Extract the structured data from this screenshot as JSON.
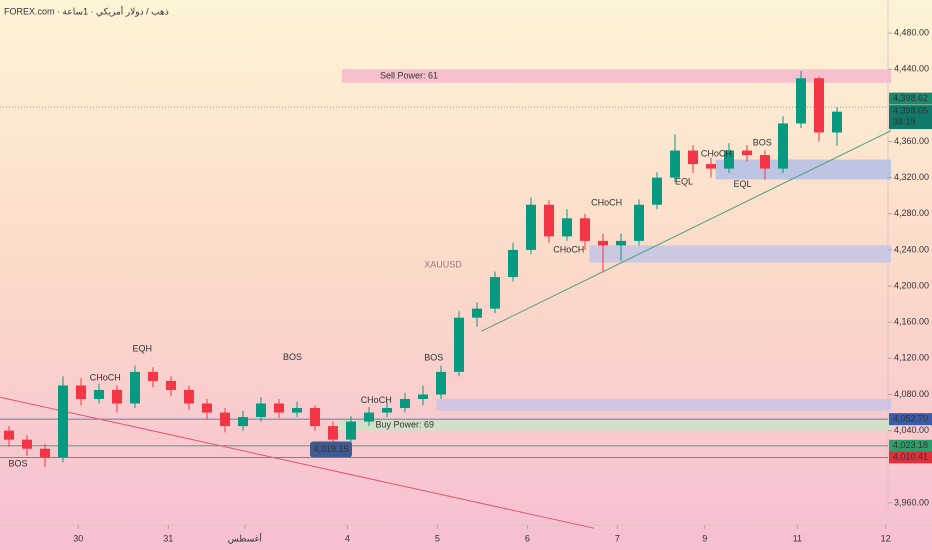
{
  "chart_data": {
    "type": "candlestick",
    "header": "FOREX.com · ذهب / دولار أمريكي · 1ساعة",
    "watermark": "XAUUSD",
    "up_color": "#089981",
    "down_color": "#f23645",
    "xlim": [
      0,
      99
    ],
    "ylim": [
      3930,
      4500
    ],
    "xticks": [
      {
        "value": 8.7,
        "label": "30"
      },
      {
        "value": 18.7,
        "label": "31"
      },
      {
        "value": 27.2,
        "label": "أغسطس"
      },
      {
        "value": 38.6,
        "label": "4"
      },
      {
        "value": 48.6,
        "label": "5"
      },
      {
        "value": 58.6,
        "label": "6"
      },
      {
        "value": 68.6,
        "label": "7"
      },
      {
        "value": 78.3,
        "label": "9"
      },
      {
        "value": 88.6,
        "label": "11"
      },
      {
        "value": 98.4,
        "label": "12"
      }
    ],
    "yticks": [
      {
        "value": 4480,
        "label": "4,480.00"
      },
      {
        "value": 4440,
        "label": "4,440.00"
      },
      {
        "value": 4360,
        "label": "4,360.00"
      },
      {
        "value": 4320,
        "label": "4,320.00"
      },
      {
        "value": 4280,
        "label": "4,280.00"
      },
      {
        "value": 4240,
        "label": "4,240.00"
      },
      {
        "value": 4200,
        "label": "4,200.00"
      },
      {
        "value": 4160,
        "label": "4,160.00"
      },
      {
        "value": 4120,
        "label": "4,120.00"
      },
      {
        "value": 4080,
        "label": "4,080.00"
      },
      {
        "value": 4040,
        "label": "4,040.00"
      },
      {
        "value": 3960,
        "label": "3,960.00"
      }
    ],
    "x": [
      1,
      3,
      5,
      7,
      9,
      11,
      13,
      15,
      17,
      19,
      21,
      23,
      25,
      27,
      29,
      31,
      33,
      35,
      37,
      39,
      41,
      43,
      45,
      47,
      49,
      51,
      53,
      55,
      57,
      59,
      61,
      63,
      65,
      67,
      69,
      71,
      73,
      75,
      77,
      79,
      81,
      83,
      85,
      87,
      89,
      91,
      93
    ],
    "open": [
      4040,
      4030,
      4020,
      4010,
      4090,
      4075,
      4085,
      4070,
      4105,
      4095,
      4085,
      4070,
      4060,
      4045,
      4055,
      4070,
      4060,
      4065,
      4045,
      4030,
      4050,
      4060,
      4065,
      4075,
      4080,
      4105,
      4165,
      4175,
      4210,
      4240,
      4290,
      4255,
      4275,
      4250,
      4245,
      4250,
      4290,
      4320,
      4350,
      4335,
      4330,
      4350,
      4345,
      4330,
      4380,
      4430,
      4370
    ],
    "high": [
      4045,
      4035,
      4025,
      4100,
      4098,
      4092,
      4090,
      4112,
      4110,
      4100,
      4090,
      4075,
      4065,
      4062,
      4077,
      4075,
      4072,
      4068,
      4050,
      4056,
      4066,
      4072,
      4082,
      4090,
      4112,
      4172,
      4182,
      4216,
      4248,
      4298,
      4295,
      4285,
      4280,
      4258,
      4258,
      4296,
      4326,
      4368,
      4356,
      4342,
      4358,
      4356,
      4350,
      4388,
      4438,
      4432,
      4398
    ],
    "low": [
      4022,
      4012,
      4000,
      4005,
      4068,
      4070,
      4060,
      4065,
      4088,
      4078,
      4063,
      4052,
      4038,
      4040,
      4050,
      4054,
      4055,
      4040,
      4019,
      4026,
      4045,
      4055,
      4060,
      4068,
      4075,
      4100,
      4155,
      4170,
      4205,
      4235,
      4248,
      4250,
      4240,
      4215,
      4228,
      4245,
      4285,
      4315,
      4325,
      4320,
      4325,
      4338,
      4318,
      4325,
      4375,
      4360,
      4355
    ],
    "close": [
      4030,
      4020,
      4010,
      4090,
      4075,
      4085,
      4070,
      4105,
      4095,
      4085,
      4070,
      4060,
      4045,
      4055,
      4070,
      4060,
      4065,
      4045,
      4030,
      4050,
      4060,
      4065,
      4075,
      4080,
      4105,
      4165,
      4175,
      4210,
      4240,
      4290,
      4255,
      4275,
      4250,
      4245,
      4250,
      4290,
      4320,
      4350,
      4335,
      4330,
      4350,
      4345,
      4330,
      4380,
      4430,
      4370,
      4393
    ],
    "zones": [
      {
        "label": "Sell Power: 61",
        "x": [
          38,
          99
        ],
        "y": [
          4425,
          4440
        ],
        "color": "#f4b8cc"
      },
      {
        "label": "Buy Power: 69",
        "x": [
          37.5,
          99
        ],
        "y": [
          4040,
          4052.7
        ],
        "color": "#cde3c8"
      },
      {
        "x": [
          79.5,
          99
        ],
        "y": [
          4318,
          4340
        ],
        "color": "#b3bfe6"
      },
      {
        "x": [
          65.5,
          99
        ],
        "y": [
          4226,
          4245
        ],
        "color": "#c2c6e6"
      },
      {
        "x": [
          48.5,
          99
        ],
        "y": [
          4062,
          4075
        ],
        "color": "#c9c3e6"
      }
    ],
    "levels": [
      {
        "value": 4052.7,
        "label": "4,052.70",
        "color": "#3d5ca8"
      },
      {
        "value": 4023.18,
        "label": "4,023.18",
        "color": "#2e9e6b"
      },
      {
        "value": 4010.41,
        "label": "4,010.41",
        "color": "#e0303c"
      }
    ],
    "last_price": {
      "value": 4398.62,
      "label": "4,398.62",
      "color": "#1a8a6e"
    },
    "current": {
      "value": 4398.05,
      "label": "4,398.05",
      "timer": "38:19",
      "color": "#0f7a6a"
    },
    "low_marker": {
      "value": 4019.15,
      "label": "4,019.15",
      "x": 37
    },
    "trendlines": [
      {
        "x": [
          53.5,
          99
        ],
        "y": [
          4150,
          4372
        ],
        "color": "#4f9e7e"
      },
      {
        "x": [
          0,
          66
        ],
        "y": [
          4077,
          3932
        ],
        "color": "#e25577"
      }
    ],
    "annotations": [
      {
        "text": "EQH",
        "x": 15.8,
        "y": 4130
      },
      {
        "text": "CHoCH",
        "x": 11.7,
        "y": 4098
      },
      {
        "text": "BOS",
        "x": 32.5,
        "y": 4121
      },
      {
        "text": "BOS",
        "x": 48.2,
        "y": 4120
      },
      {
        "text": "CHoCH",
        "x": 41.8,
        "y": 4073
      },
      {
        "text": "CHoCH",
        "x": 67.4,
        "y": 4292
      },
      {
        "text": "CHoCH",
        "x": 63.2,
        "y": 4240
      },
      {
        "text": "CHoCH",
        "x": 79.6,
        "y": 4346
      },
      {
        "text": "EQL",
        "x": 76,
        "y": 4315
      },
      {
        "text": "EQL",
        "x": 82.5,
        "y": 4312
      },
      {
        "text": "BOS",
        "x": 84.7,
        "y": 4358
      },
      {
        "text": "BOS",
        "x": 2,
        "y": 4003
      }
    ]
  }
}
